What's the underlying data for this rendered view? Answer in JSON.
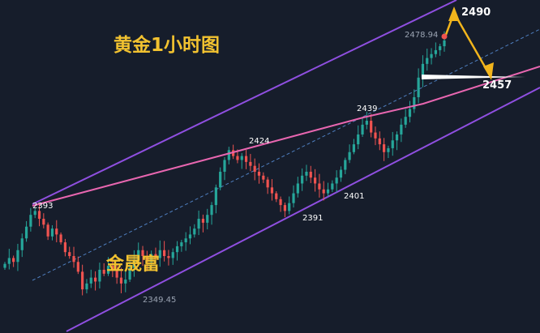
{
  "chart_data": {
    "type": "candlestick",
    "title": "黄金1小时图",
    "watermark": "金晟富",
    "swing_labels": [
      "2393",
      "2424",
      "2439",
      "2401",
      "2391"
    ],
    "low_label": "2349.45",
    "last_label": "2478.94",
    "targets": [
      "2490",
      "2457"
    ],
    "colors": {
      "up": "#26a69a",
      "down": "#ef5350",
      "channel": "#8f4fe0",
      "trendline": "#e866b0",
      "midline": "#4f7fc0",
      "arrow": "#f2b51c",
      "support": "#ffffff"
    },
    "closes": [
      2365,
      2368,
      2366,
      2372,
      2378,
      2384,
      2390,
      2392,
      2388,
      2385,
      2379,
      2383,
      2380,
      2376,
      2371,
      2369,
      2366,
      2361,
      2352,
      2355,
      2358,
      2356,
      2362,
      2360,
      2364,
      2362,
      2358,
      2355,
      2357,
      2363,
      2367,
      2372,
      2369,
      2366,
      2370,
      2368,
      2372,
      2369,
      2368,
      2371,
      2374,
      2376,
      2378,
      2380,
      2383,
      2388,
      2386,
      2390,
      2395,
      2404,
      2412,
      2418,
      2423,
      2420,
      2418,
      2420,
      2417,
      2415,
      2412,
      2410,
      2408,
      2404,
      2401,
      2398,
      2395,
      2392,
      2396,
      2401,
      2406,
      2410,
      2412,
      2409,
      2406,
      2403,
      2401,
      2403,
      2406,
      2409,
      2413,
      2418,
      2422,
      2426,
      2431,
      2436,
      2438,
      2432,
      2429,
      2426,
      2422,
      2424,
      2428,
      2431,
      2436,
      2440,
      2444,
      2450,
      2460,
      2467,
      2470,
      2472,
      2474,
      2476,
      2478.94
    ]
  }
}
